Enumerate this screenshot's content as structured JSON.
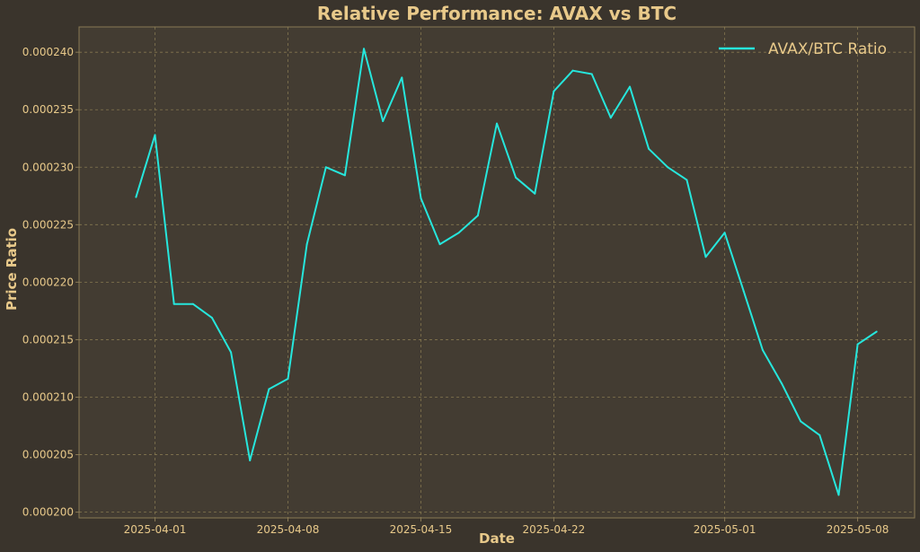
{
  "colors": {
    "background": "#3a342c",
    "plot_background": "#433c32",
    "text": "#e8c98a",
    "grid": "#9a8a5a",
    "line": "#26e6dc"
  },
  "chart_data": {
    "type": "line",
    "title": "Relative Performance: AVAX vs BTC",
    "xlabel": "Date",
    "ylabel": "Price Ratio",
    "grid": true,
    "legend_position": "top-right",
    "x_range": [
      "2025-03-28",
      "2025-05-11"
    ],
    "ylim": [
      0.0001995,
      0.0002422
    ],
    "x_ticks": [
      {
        "date": "2025-04-01",
        "label": "2025-04-01"
      },
      {
        "date": "2025-04-08",
        "label": "2025-04-08"
      },
      {
        "date": "2025-04-15",
        "label": "2025-04-15"
      },
      {
        "date": "2025-04-22",
        "label": "2025-04-22"
      },
      {
        "date": "2025-05-01",
        "label": "2025-05-01"
      },
      {
        "date": "2025-05-08",
        "label": "2025-05-08"
      }
    ],
    "y_ticks": [
      {
        "value": 0.0002,
        "label": "0.000200"
      },
      {
        "value": 0.000205,
        "label": "0.000205"
      },
      {
        "value": 0.00021,
        "label": "0.000210"
      },
      {
        "value": 0.000215,
        "label": "0.000215"
      },
      {
        "value": 0.00022,
        "label": "0.000220"
      },
      {
        "value": 0.000225,
        "label": "0.000225"
      },
      {
        "value": 0.00023,
        "label": "0.000230"
      },
      {
        "value": 0.000235,
        "label": "0.000235"
      },
      {
        "value": 0.00024,
        "label": "0.000240"
      }
    ],
    "series": [
      {
        "name": "AVAX/BTC Ratio",
        "color": "#26e6dc",
        "x": [
          "2025-03-31",
          "2025-04-01",
          "2025-04-02",
          "2025-04-03",
          "2025-04-04",
          "2025-04-05",
          "2025-04-06",
          "2025-04-07",
          "2025-04-08",
          "2025-04-09",
          "2025-04-10",
          "2025-04-11",
          "2025-04-12",
          "2025-04-13",
          "2025-04-14",
          "2025-04-15",
          "2025-04-16",
          "2025-04-17",
          "2025-04-18",
          "2025-04-19",
          "2025-04-20",
          "2025-04-21",
          "2025-04-22",
          "2025-04-23",
          "2025-04-24",
          "2025-04-25",
          "2025-04-26",
          "2025-04-27",
          "2025-04-28",
          "2025-04-29",
          "2025-04-30",
          "2025-05-01",
          "2025-05-02",
          "2025-05-03",
          "2025-05-04",
          "2025-05-05",
          "2025-05-06",
          "2025-05-07",
          "2025-05-08",
          "2025-05-09"
        ],
        "values": [
          0.0002274,
          0.0002328,
          0.0002181,
          0.0002181,
          0.0002169,
          0.0002139,
          0.0002045,
          0.0002107,
          0.0002116,
          0.0002233,
          0.00023,
          0.0002293,
          0.0002403,
          0.000234,
          0.0002378,
          0.0002273,
          0.0002233,
          0.0002243,
          0.0002258,
          0.0002338,
          0.0002291,
          0.0002277,
          0.0002366,
          0.0002384,
          0.0002381,
          0.0002343,
          0.000237,
          0.0002316,
          0.00023,
          0.0002289,
          0.0002222,
          0.0002243,
          0.0002192,
          0.0002141,
          0.0002112,
          0.0002079,
          0.0002067,
          0.0002015,
          0.0002146,
          0.0002157
        ]
      }
    ]
  }
}
